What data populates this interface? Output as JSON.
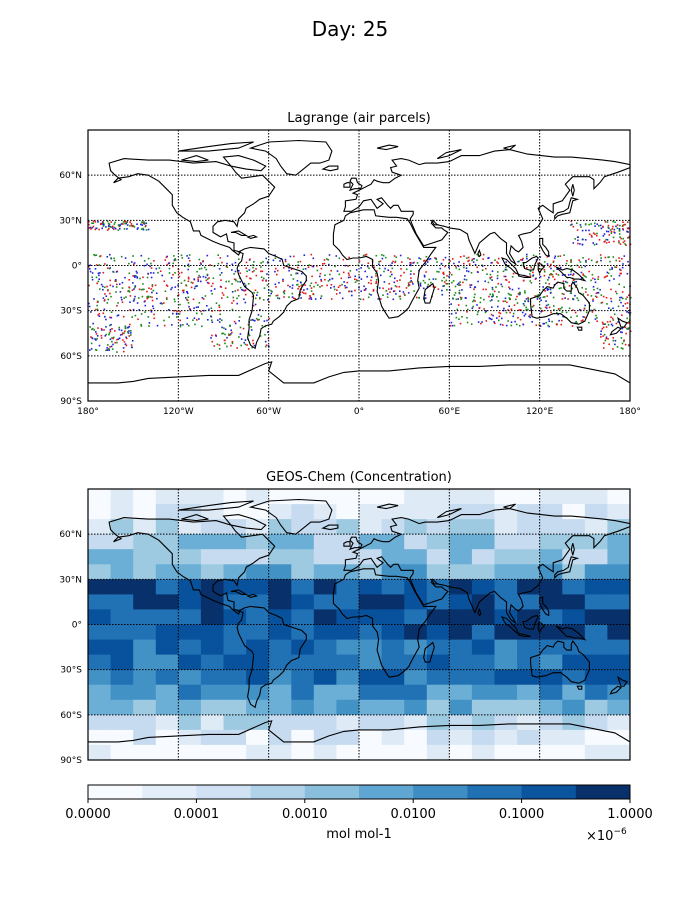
{
  "figure": {
    "title": "Day: 25"
  },
  "lagrange_panel": {
    "title": "Lagrange (air parcels)",
    "series_colors": [
      "#e41a1c",
      "#1f22d6",
      "#1a8a1a"
    ]
  },
  "geoschem_panel": {
    "title": "GEOS-Chem (Concentration)",
    "cmap": [
      "#f7fbff",
      "#deebf7",
      "#c6dbef",
      "#9ecae1",
      "#6baed6",
      "#4292c6",
      "#2171b5",
      "#08519c",
      "#08306b"
    ]
  },
  "axes": {
    "lon_ticks": [
      "180°",
      "120°W",
      "60°W",
      "0°",
      "60°E",
      "120°E",
      "180°"
    ],
    "lat_ticks": [
      "60°N",
      "30°N",
      "0°",
      "30°S",
      "60°S",
      "90°S"
    ],
    "lon_range": [
      -180,
      180
    ],
    "lat_range": [
      -90,
      90
    ]
  },
  "colorbar": {
    "tick_labels": [
      "0.0000",
      "0.0001",
      "0.0010",
      "0.0100",
      "0.1000",
      "1.0000"
    ],
    "label": "mol mol-1",
    "multiplier": "×10",
    "exponent": "−6"
  }
}
